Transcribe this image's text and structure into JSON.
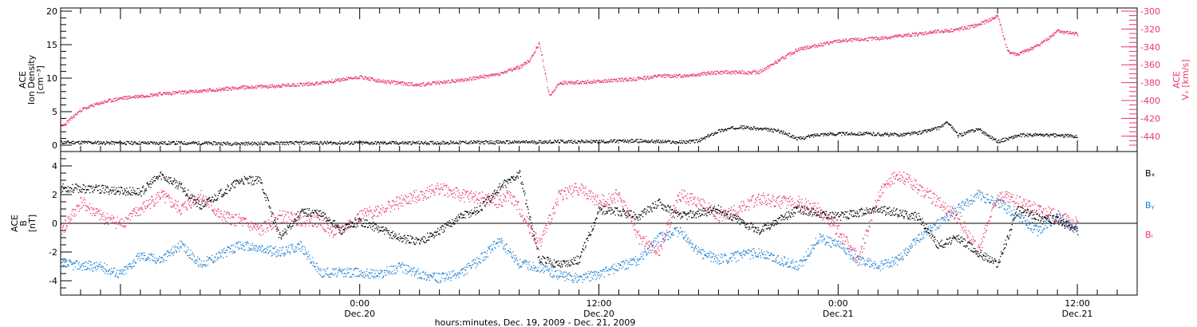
{
  "chart_data": [
    {
      "type": "scatter",
      "panel": "top",
      "xlabel": "hours:minutes, Dec. 19, 2009 - Dec. 21, 2009",
      "x_tick_labels": [
        {
          "time": "0:00",
          "date": "Dec.20",
          "hours": 24
        },
        {
          "time": "12:00",
          "date": "Dec.20",
          "hours": 36
        },
        {
          "time": "0:00",
          "date": "Dec.21",
          "hours": 48
        },
        {
          "time": "12:00",
          "date": "Dec.21",
          "hours": 60
        }
      ],
      "x_range_hours": [
        9,
        63
      ],
      "ylabel_left": [
        "ACE",
        "Ion Density",
        "[cm⁻³]"
      ],
      "ylim_left": [
        0,
        20
      ],
      "yticks_left": [
        "0",
        "5",
        "10",
        "15",
        "20"
      ],
      "ylabel_right": [
        "ACE",
        "Vₓ [km/s]"
      ],
      "ylim_right": [
        -450,
        -300
      ],
      "yticks_right": [
        "-300",
        "-320",
        "-340",
        "-360",
        "-380",
        "-400",
        "-420",
        "-440"
      ],
      "series": [
        {
          "axis": "left",
          "color": "#000000",
          "hours": [
            9,
            12,
            15,
            18,
            21,
            24,
            27,
            30,
            32,
            34,
            36,
            38,
            40,
            41,
            42,
            43,
            45,
            46,
            47,
            49,
            51,
            52,
            53,
            53.5,
            54,
            55,
            56,
            57,
            58,
            60
          ],
          "values": [
            0.5,
            0.4,
            0.4,
            0.3,
            0.4,
            0.4,
            0.4,
            0.5,
            0.5,
            0.6,
            0.6,
            0.7,
            0.5,
            0.7,
            2.2,
            2.8,
            2.2,
            1.0,
            1.7,
            1.8,
            1.6,
            1.9,
            2.6,
            3.5,
            1.5,
            2.5,
            0.6,
            1.5,
            1.6,
            1.4
          ]
        },
        {
          "axis": "right",
          "color": "#e8386a",
          "hours": [
            9,
            10,
            11,
            12,
            14,
            16,
            18,
            20,
            22,
            24,
            25,
            27,
            29,
            31,
            32,
            32.5,
            33,
            33.5,
            34,
            36,
            38,
            39,
            40,
            42,
            44,
            46,
            48,
            50,
            52,
            54,
            55,
            56,
            56.5,
            57,
            58,
            59,
            60
          ],
          "values": [
            -430,
            -410,
            -402,
            -397,
            -392,
            -389,
            -385,
            -383,
            -380,
            -373,
            -378,
            -382,
            -377,
            -370,
            -362,
            -355,
            -335,
            -395,
            -380,
            -378,
            -375,
            -372,
            -372,
            -368,
            -368,
            -342,
            -333,
            -330,
            -325,
            -320,
            -315,
            -305,
            -345,
            -348,
            -338,
            -322,
            -325
          ]
        }
      ]
    },
    {
      "type": "scatter",
      "panel": "bottom",
      "ylabel": [
        "ACE",
        "B",
        "[nT]"
      ],
      "ylim": [
        -5,
        5
      ],
      "yticks": [
        "4",
        "2",
        "0",
        "-2",
        "-4"
      ],
      "zero_line": true,
      "legend": [
        "Bₓ",
        "Bᵧ",
        "Bᵣ"
      ],
      "series": [
        {
          "name": "Bx",
          "color": "#000000",
          "hours": [
            9,
            11,
            13,
            14,
            15,
            16,
            18,
            19,
            20,
            21,
            21.8,
            22.5,
            23,
            24,
            26,
            27,
            28,
            29,
            30,
            31,
            32,
            33,
            34,
            35,
            36,
            37,
            38,
            39,
            40,
            42,
            44,
            46,
            48,
            50,
            52,
            53,
            54,
            55,
            56,
            57,
            58,
            59,
            60
          ],
          "values": [
            2.5,
            2.4,
            2.2,
            3.4,
            2.6,
            1.2,
            3.0,
            3.0,
            -1.0,
            0.8,
            0.8,
            0.3,
            -0.5,
            0.2,
            -1.0,
            -1.2,
            -0.5,
            0.5,
            1.0,
            2.5,
            3.5,
            -2.5,
            -2.8,
            -2.5,
            1.0,
            0.8,
            0.5,
            1.5,
            0.5,
            1.0,
            -0.5,
            1.0,
            0.5,
            1.0,
            0.5,
            -1.5,
            -1.0,
            -2.0,
            -2.8,
            1.0,
            0.5,
            0.2,
            -0.5
          ]
        },
        {
          "name": "By",
          "color": "#1a7fd4",
          "hours": [
            9,
            11,
            12,
            13,
            14,
            15,
            16,
            18,
            20,
            21,
            22,
            24,
            25,
            26,
            27,
            28,
            29,
            30,
            31,
            32,
            33,
            34,
            35,
            36,
            37,
            38,
            39,
            40,
            41,
            42,
            44,
            46,
            47,
            48,
            49,
            50,
            51,
            52,
            53,
            54,
            55,
            56,
            57,
            58,
            59,
            60
          ],
          "values": [
            -2.8,
            -3.0,
            -3.5,
            -2.2,
            -2.5,
            -1.5,
            -2.8,
            -1.5,
            -2.0,
            -1.5,
            -3.4,
            -3.4,
            -3.5,
            -3.0,
            -3.5,
            -3.8,
            -3.5,
            -2.5,
            -1.2,
            -2.8,
            -3.0,
            -3.6,
            -3.8,
            -3.5,
            -3.0,
            -2.5,
            -1.0,
            -0.5,
            -2.0,
            -2.5,
            -2.0,
            -3.0,
            -1.0,
            -1.5,
            -2.5,
            -3.0,
            -2.5,
            -1.0,
            0.0,
            1.0,
            2.0,
            1.5,
            0.5,
            -0.5,
            0.5,
            -0.5
          ]
        },
        {
          "name": "Bz",
          "color": "#e8386a",
          "hours": [
            9,
            10,
            11,
            12,
            13,
            14,
            15,
            16,
            17,
            18,
            19,
            20,
            21,
            22,
            22.5,
            23,
            24,
            25,
            26,
            27,
            28,
            29,
            30,
            31,
            31.5,
            32,
            33,
            34,
            35,
            36,
            37,
            38,
            39,
            40,
            41,
            42,
            43,
            44,
            45,
            46,
            47,
            48,
            49,
            50,
            51,
            52,
            53,
            54,
            55,
            56,
            57,
            58,
            59,
            60
          ],
          "values": [
            -0.5,
            1.5,
            0.5,
            0.0,
            1.0,
            2.0,
            1.0,
            2.0,
            0.5,
            0.2,
            -0.5,
            0.5,
            0.3,
            0.2,
            -0.5,
            -0.5,
            0.5,
            1.0,
            1.5,
            2.0,
            2.5,
            2.0,
            1.8,
            1.5,
            2.0,
            1.0,
            -1.5,
            2.0,
            2.5,
            1.5,
            2.0,
            -1.0,
            -2.0,
            2.0,
            1.5,
            0.5,
            1.0,
            1.8,
            1.5,
            1.5,
            1.0,
            -0.5,
            -2.5,
            2.0,
            3.5,
            2.5,
            1.5,
            0.5,
            -2.0,
            2.0,
            1.5,
            1.0,
            0.5,
            0.0
          ]
        }
      ]
    }
  ]
}
